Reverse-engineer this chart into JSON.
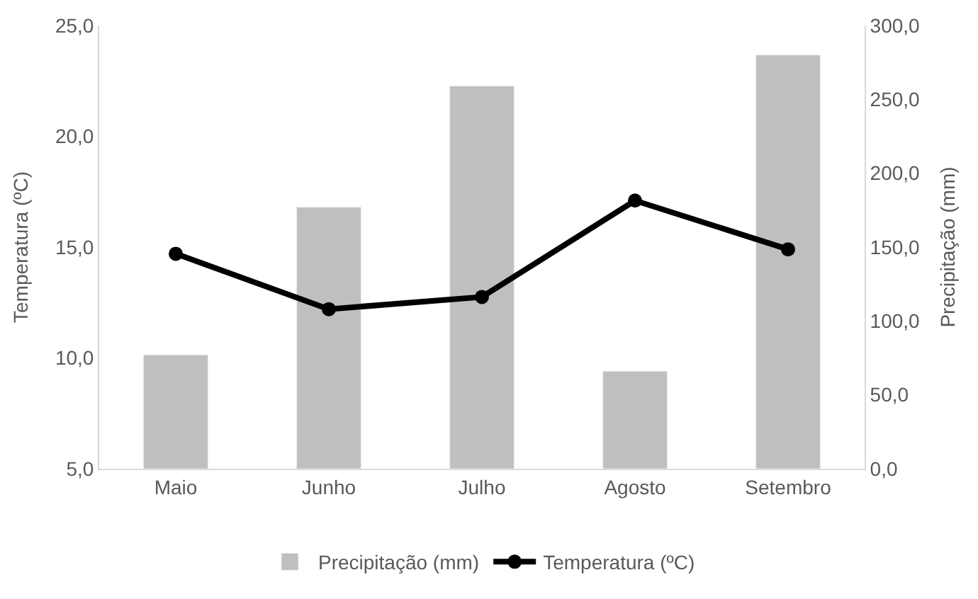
{
  "chart_data": {
    "type": "bar",
    "categories": [
      "Maio",
      "Junho",
      "Julho",
      "Agosto",
      "Setembro"
    ],
    "ylabel": "Temperatura (ºC)",
    "y2label": "Precipitação (mm)",
    "series": [
      {
        "name": "Precipitação (mm)",
        "axis": "y2",
        "color": "#bfbfbf",
        "values": [
          77,
          177,
          259,
          66,
          280
        ]
      },
      {
        "name": "Temperatura (ºC)",
        "type": "line",
        "axis": "y",
        "color": "#000000",
        "marker": "circle",
        "values": [
          14.7,
          12.2,
          12.75,
          17.1,
          14.9
        ]
      }
    ],
    "ylim": [
      5,
      25
    ],
    "yticks": [
      {
        "value": 5,
        "label": "5,0"
      },
      {
        "value": 10,
        "label": "10,0"
      },
      {
        "value": 15,
        "label": "15,0"
      },
      {
        "value": 20,
        "label": "20,0"
      },
      {
        "value": 25,
        "label": "25,0"
      }
    ],
    "y2lim": [
      0,
      300
    ],
    "y2ticks": [
      {
        "value": 0,
        "label": "0,0"
      },
      {
        "value": 50,
        "label": "50,0"
      },
      {
        "value": 100,
        "label": "100,0"
      },
      {
        "value": 150,
        "label": "150,0"
      },
      {
        "value": 200,
        "label": "200,0"
      },
      {
        "value": 250,
        "label": "250,0"
      },
      {
        "value": 300,
        "label": "300,0"
      }
    ],
    "legend": "bottom"
  }
}
